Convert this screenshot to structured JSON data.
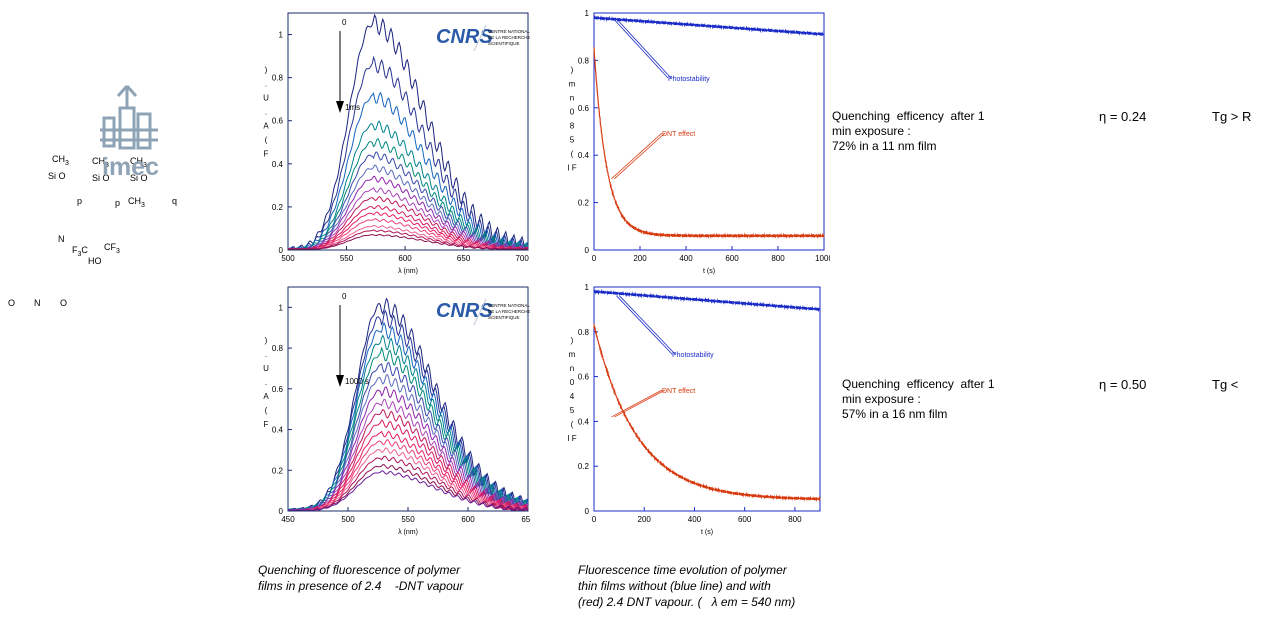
{
  "logos": {
    "imec": "imec",
    "cnrs": "CNRS",
    "cnrs_sub_1": "CENTRE NATIONAL",
    "cnrs_sub_2": "DE LA RECHERCHE",
    "cnrs_sub_3": "SCIENTIFIQUE"
  },
  "chem_labels": {
    "ch3_a": "CH",
    "ch3_b": "CH",
    "ch3_c": "CH",
    "ch3_d": "CH",
    "sub3": "3",
    "si_o_1": "Si O",
    "si_o_2": "Si O",
    "si_o_3": "Si O",
    "p1": "p",
    "p2": "p",
    "q": "q",
    "n": "N",
    "f3c": "F",
    "cf3": "CF",
    "ho": "HO",
    "o1": "O",
    "n2": "N",
    "o2": "O"
  },
  "rows": [
    {
      "text1": "Quenching  efficency  after 1",
      "text2": "min exposure :",
      "text3": "72% in a 11 nm film",
      "eta": "η = 0.24",
      "tg": "Tg > R"
    },
    {
      "text1": "Quenching  efficency  after 1",
      "text2": "min exposure :",
      "text3": "57% in a 16 nm film",
      "eta": "η = 0.50",
      "tg": "Tg <"
    }
  ],
  "captions": {
    "left_1": "Quenching of fluorescence of polymer",
    "left_2": "films in presence of 2.4    -DNT vapour",
    "right_1": "Fluorescence time evolution of polymer",
    "right_2": "thin films without (blue line) and with",
    "right_3": "(red) 2.4 DNT vapour. (   λ em = 540 nm)"
  },
  "chart_data": [
    {
      "type": "line",
      "xlabel": "λ (nm)",
      "ylabel_chars": [
        ")",
        ".",
        "U",
        ".",
        "A",
        "(",
        "F"
      ],
      "xlim": [
        500,
        705
      ],
      "ylim": [
        0,
        1.1
      ],
      "xticks": [
        "500",
        "550",
        "600",
        "650",
        "700"
      ],
      "yticks": [
        "0",
        "0.2",
        "0.4",
        "0.6",
        "0.8",
        "1"
      ],
      "annot_top": "0",
      "annot_bottom": "1ms",
      "series_peaks": [
        1.05,
        0.86,
        0.71,
        0.58,
        0.5,
        0.44,
        0.38,
        0.33,
        0.28,
        0.24,
        0.2,
        0.17,
        0.14,
        0.11,
        0.09,
        0.07
      ],
      "peak_x": 572
    },
    {
      "type": "line",
      "xlabel": "t (s)",
      "ylabel_chars": [
        ")",
        "m",
        "n",
        "0",
        "8",
        "5",
        "(",
        "I F"
      ],
      "xlim": [
        0,
        1000
      ],
      "ylim": [
        0,
        1
      ],
      "xticks": [
        "0",
        "200",
        "400",
        "600",
        "800",
        "1000"
      ],
      "yticks": [
        "0",
        "0.2",
        "0.4",
        "0.6",
        "0.8",
        "1"
      ],
      "series": [
        {
          "name": "Photostability",
          "color": "#1a2bc8",
          "start": 0.98,
          "end": 0.91
        },
        {
          "name": "DNT effect",
          "color": "#d83a10",
          "start": 0.85,
          "plateau": 0.06,
          "tau": 55
        }
      ]
    },
    {
      "type": "line",
      "xlabel": "λ (nm)",
      "ylabel_chars": [
        ")",
        ".",
        "U",
        ".",
        "A",
        "(",
        "F"
      ],
      "xlim": [
        450,
        650
      ],
      "ylim": [
        0,
        1.1
      ],
      "xticks": [
        "450",
        "500",
        "550",
        "600",
        "650"
      ],
      "yticks": [
        "0",
        "0.2",
        "0.4",
        "0.6",
        "0.8",
        "1"
      ],
      "annot_top": "0",
      "annot_bottom": "1000 s",
      "series_peaks": [
        1.01,
        0.95,
        0.89,
        0.83,
        0.77,
        0.71,
        0.65,
        0.59,
        0.53,
        0.48,
        0.43,
        0.38,
        0.34,
        0.3,
        0.26,
        0.22,
        0.19
      ],
      "peak_x": 527
    },
    {
      "type": "line",
      "xlabel": "t (s)",
      "ylabel_chars": [
        ")",
        "m",
        "n",
        "0",
        "4",
        "5",
        "(",
        "I F"
      ],
      "xlim": [
        0,
        900
      ],
      "ylim": [
        0,
        1
      ],
      "xticks": [
        "0",
        "200",
        "400",
        "600",
        "800"
      ],
      "yticks": [
        "0",
        "0.2",
        "0.4",
        "0.6",
        "0.8",
        "1"
      ],
      "series": [
        {
          "name": "Photostability",
          "color": "#1a2bc8",
          "start": 0.98,
          "end": 0.9
        },
        {
          "name": "DNT effect",
          "color": "#d83a10",
          "start": 0.83,
          "plateau": 0.05,
          "tau": 170
        }
      ]
    }
  ]
}
